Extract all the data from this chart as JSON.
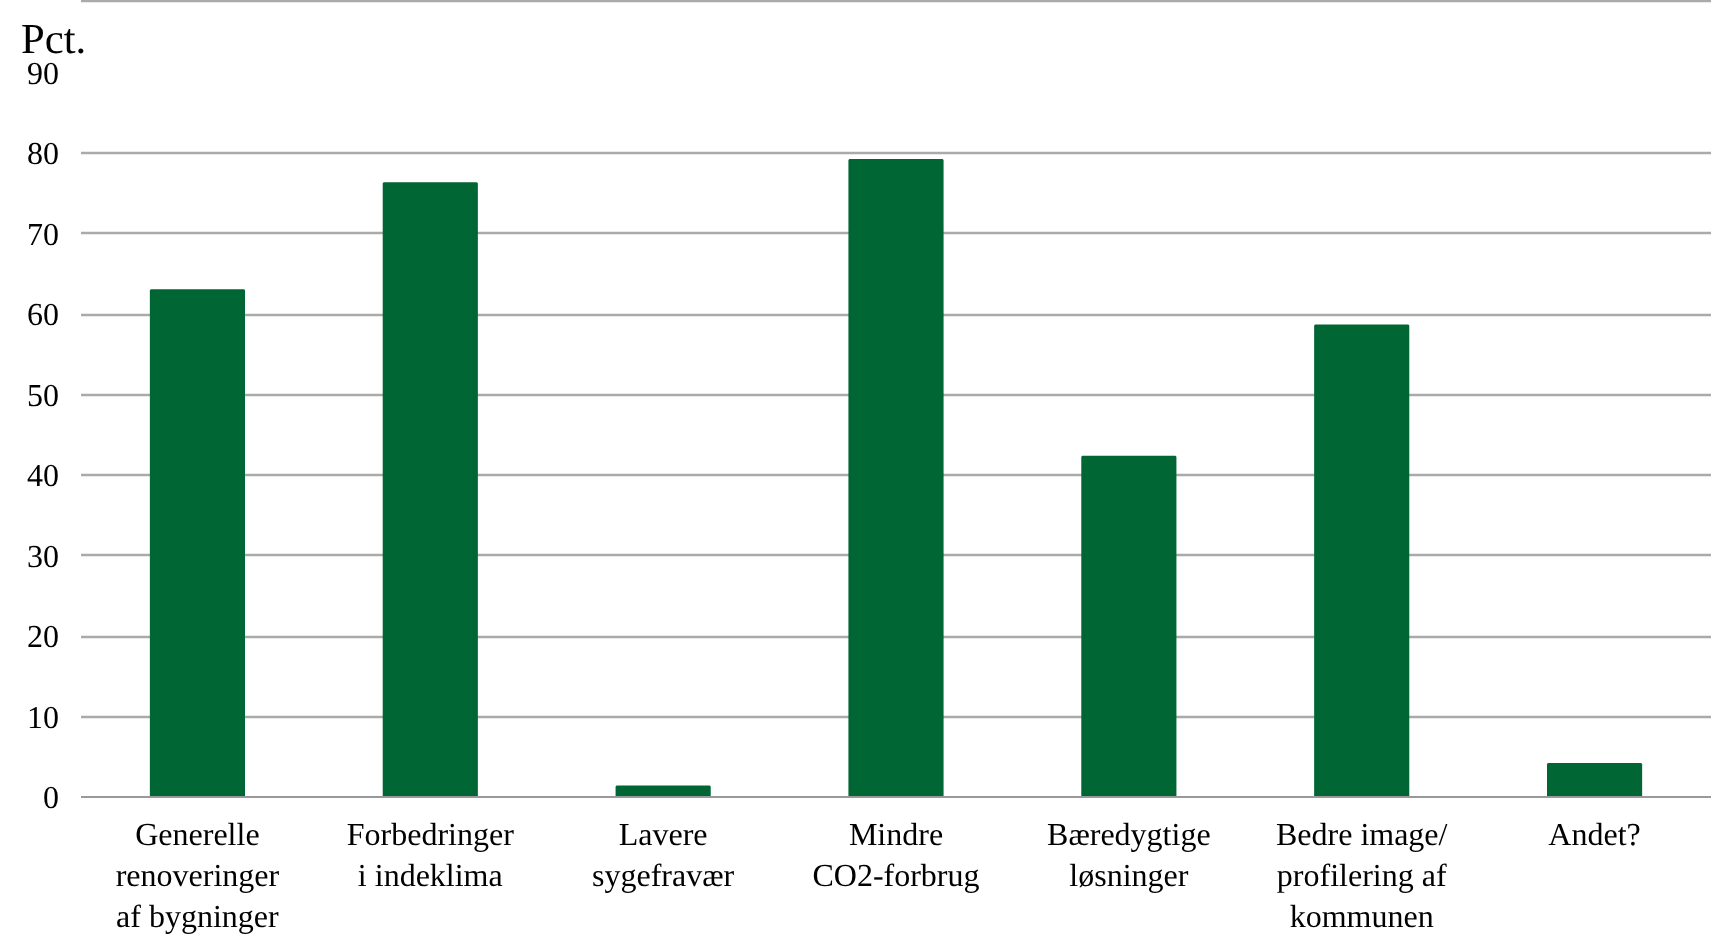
{
  "chart_data": {
    "type": "bar",
    "ylabel": "Pct.",
    "categories": [
      "Generelle\nrenoveringer\naf bygninger",
      "Forbedringer\ni indeklima",
      "Lavere\nsygefravær",
      "Mindre\nCO2-forbrug",
      "Bæredygtige\nløsninger",
      "Bedre image/\nprofilering af\nkommunen",
      "Andet?"
    ],
    "values": [
      63.0,
      76.3,
      1.3,
      79.2,
      42.3,
      58.6,
      4.1
    ],
    "color": "#006633",
    "ylim": [
      0,
      90
    ],
    "yticks": [
      0,
      10,
      20,
      30,
      40,
      50,
      60,
      70,
      80,
      90
    ],
    "grid": "y"
  }
}
